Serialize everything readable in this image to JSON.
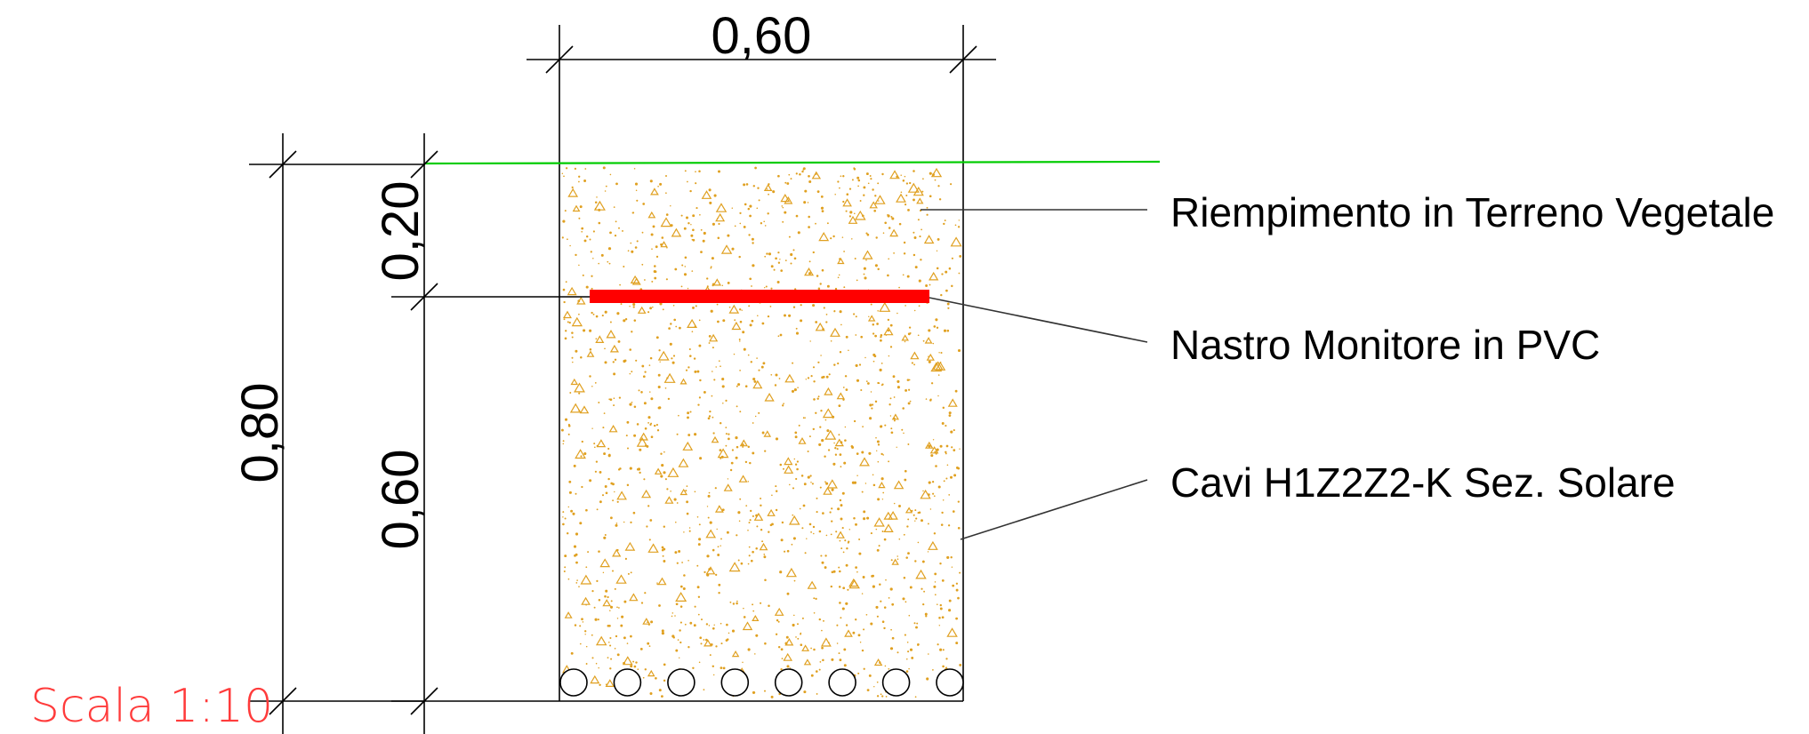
{
  "dimensions": {
    "trench_width": "0,60",
    "total_depth": "0,80",
    "tape_depth": "0,20",
    "cable_zone_depth": "0,60"
  },
  "labels": {
    "fill": "Riempimento in Terreno Vegetale",
    "tape": "Nastro Monitore in PVC",
    "cables": "Cavi H1Z2Z2-K Sez. Solare"
  },
  "scale": "Scala 1:10",
  "cable_count": 8,
  "colors": {
    "ground_line": "#00cc00",
    "warning_tape": "#ff0000",
    "fill_dots": "#e0a020",
    "scale_text": "#ff3b3b"
  }
}
